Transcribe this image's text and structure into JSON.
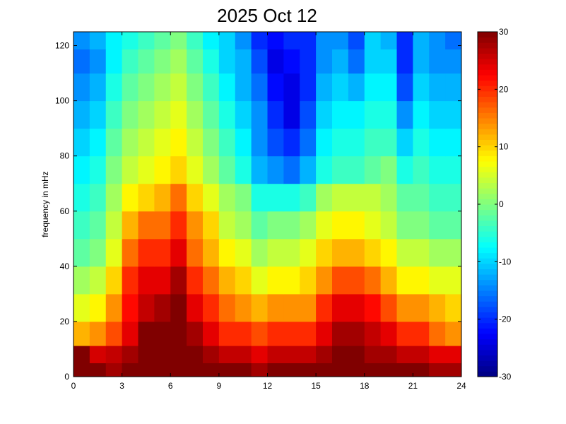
{
  "chart_data": {
    "type": "heatmap",
    "title": "2025 Oct 12",
    "xlabel": "",
    "ylabel": "frequency in mHz",
    "xlim": [
      0,
      24
    ],
    "ylim": [
      0,
      125
    ],
    "x_ticks": [
      0,
      3,
      6,
      9,
      12,
      15,
      18,
      21,
      24
    ],
    "y_ticks": [
      0,
      20,
      40,
      60,
      80,
      100,
      120
    ],
    "colorbar": {
      "colormap": "jet",
      "range": [
        -30,
        30
      ],
      "ticks": [
        -30,
        -20,
        -10,
        0,
        10,
        20,
        30
      ]
    },
    "x_centers": [
      0.5,
      1.5,
      2.5,
      3.5,
      4.5,
      5.5,
      6.5,
      7.5,
      8.5,
      9.5,
      10.5,
      11.5,
      12.5,
      13.5,
      14.5,
      15.5,
      16.5,
      17.5,
      18.5,
      19.5,
      20.5,
      21.5,
      22.5,
      23.5
    ],
    "y_centers": [
      2.5,
      7.5,
      15,
      25,
      35,
      45,
      55,
      65,
      75,
      85,
      95,
      105,
      115,
      122.5
    ],
    "z": [
      [
        30,
        30,
        28,
        30,
        30,
        30,
        30,
        30,
        30,
        30,
        30,
        28,
        30,
        30,
        30,
        30,
        30,
        30,
        30,
        30,
        30,
        30,
        28,
        28
      ],
      [
        30,
        25,
        26,
        28,
        30,
        30,
        30,
        30,
        28,
        26,
        26,
        24,
        26,
        26,
        26,
        28,
        30,
        30,
        28,
        28,
        26,
        26,
        24,
        24
      ],
      [
        12,
        14,
        18,
        24,
        30,
        30,
        30,
        28,
        24,
        20,
        20,
        18,
        20,
        20,
        20,
        24,
        28,
        28,
        26,
        24,
        20,
        20,
        16,
        14
      ],
      [
        6,
        8,
        14,
        22,
        26,
        28,
        30,
        24,
        20,
        16,
        14,
        12,
        14,
        14,
        14,
        20,
        24,
        24,
        22,
        18,
        14,
        14,
        12,
        10
      ],
      [
        2,
        4,
        10,
        20,
        24,
        24,
        28,
        20,
        16,
        12,
        10,
        6,
        8,
        8,
        10,
        14,
        18,
        18,
        16,
        12,
        8,
        8,
        6,
        6
      ],
      [
        -2,
        0,
        6,
        16,
        20,
        20,
        24,
        16,
        12,
        8,
        6,
        2,
        4,
        4,
        6,
        10,
        12,
        12,
        10,
        8,
        4,
        4,
        2,
        2
      ],
      [
        -4,
        -2,
        4,
        12,
        16,
        16,
        20,
        14,
        10,
        4,
        2,
        -2,
        0,
        0,
        2,
        6,
        8,
        8,
        6,
        4,
        0,
        0,
        -2,
        -2
      ],
      [
        -6,
        -4,
        2,
        8,
        10,
        12,
        16,
        10,
        6,
        2,
        0,
        -6,
        -6,
        -6,
        -4,
        2,
        4,
        4,
        4,
        2,
        -2,
        -2,
        -4,
        -4
      ],
      [
        -8,
        -6,
        0,
        4,
        6,
        8,
        10,
        6,
        2,
        -2,
        -6,
        -12,
        -14,
        -16,
        -12,
        -6,
        -4,
        -4,
        -2,
        0,
        -6,
        -4,
        -6,
        -6
      ],
      [
        -10,
        -8,
        -2,
        2,
        4,
        6,
        8,
        4,
        0,
        -4,
        -8,
        -14,
        -18,
        -20,
        -16,
        -8,
        -6,
        -6,
        -4,
        -4,
        -10,
        -6,
        -8,
        -8
      ],
      [
        -12,
        -10,
        -4,
        0,
        2,
        4,
        6,
        2,
        -2,
        -6,
        -10,
        -14,
        -20,
        -24,
        -18,
        -10,
        -8,
        -8,
        -6,
        -6,
        -14,
        -8,
        -10,
        -10
      ],
      [
        -14,
        -12,
        -6,
        -2,
        0,
        2,
        4,
        0,
        -4,
        -8,
        -12,
        -16,
        -22,
        -24,
        -20,
        -12,
        -10,
        -12,
        -8,
        -8,
        -18,
        -10,
        -12,
        -12
      ],
      [
        -16,
        -14,
        -8,
        -4,
        -2,
        0,
        2,
        -2,
        -6,
        -10,
        -12,
        -18,
        -24,
        -22,
        -20,
        -14,
        -12,
        -16,
        -10,
        -10,
        -20,
        -12,
        -14,
        -14
      ],
      [
        -14,
        -12,
        -8,
        -6,
        -4,
        -2,
        0,
        -4,
        -8,
        -10,
        -14,
        -20,
        -22,
        -20,
        -20,
        -14,
        -14,
        -18,
        -10,
        -12,
        -20,
        -12,
        -14,
        -16
      ]
    ]
  }
}
